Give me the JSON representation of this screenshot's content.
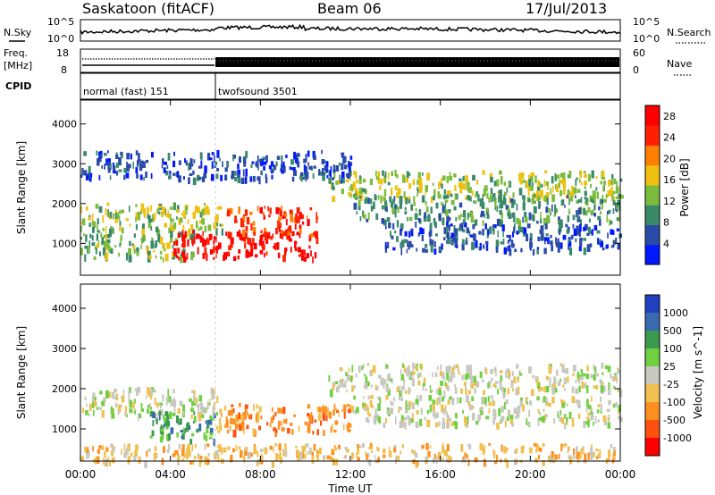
{
  "header": {
    "station": "Saskatoon (fitACF)",
    "beam": "Beam 06",
    "date": "17/Jul/2013"
  },
  "top_panels": {
    "nsky_label": "N.Sky",
    "nsky_ticks": [
      "10^5",
      "10^0"
    ],
    "nsearch_label": "N.Search",
    "nsearch_ticks": [
      "10^5",
      "10^0"
    ],
    "freq_label": "Freq.",
    "freq_unit": "[MHz]",
    "freq_ticks": [
      "18",
      "8"
    ],
    "nave_label": "Nave",
    "nave_ticks": [
      "60",
      "0"
    ],
    "cpid_label": "CPID",
    "cpid_segments": [
      {
        "name": "normal (fast) 151",
        "start_hour": 0,
        "end_hour": 6
      },
      {
        "name": "twofsound 3501",
        "start_hour": 6,
        "end_hour": 24
      }
    ]
  },
  "chart_data": [
    {
      "type": "heatmap",
      "title": "Power",
      "xlabel": "Time UT",
      "ylabel": "Slant Range [km]",
      "xlim": [
        0,
        24
      ],
      "ylim": [
        200,
        4600
      ],
      "y_ticks": [
        "1000",
        "2000",
        "3000",
        "4000"
      ],
      "colorbar_label": "Power [dB]",
      "colorbar_ticks": [
        "4",
        "8",
        "12",
        "16",
        "20",
        "24",
        "28"
      ],
      "colorbar_range": [
        0,
        30
      ],
      "colorscale": [
        "#0018ff",
        "#2a4aa8",
        "#3a8a6a",
        "#7cbc3c",
        "#f0c010",
        "#ff8000",
        "#ff2000",
        "#ff0000"
      ],
      "echo_bands": [
        {
          "start_hour": 0.0,
          "end_hour": 6.3,
          "range_km": 1700,
          "level": 14
        },
        {
          "start_hour": 0.0,
          "end_hour": 5.0,
          "range_km": 1000,
          "level": 12
        },
        {
          "start_hour": 4.0,
          "end_hour": 10.5,
          "range_km": 1000,
          "level": 28
        },
        {
          "start_hour": 6.5,
          "end_hour": 10.5,
          "range_km": 1600,
          "level": 24
        },
        {
          "start_hour": 11.0,
          "end_hour": 24.0,
          "range_km": 2500,
          "level": 14
        },
        {
          "start_hour": 12.0,
          "end_hour": 24.0,
          "range_km": 1900,
          "level": 10
        },
        {
          "start_hour": 13.5,
          "end_hour": 24.0,
          "range_km": 1200,
          "level": 6
        },
        {
          "start_hour": 0.0,
          "end_hour": 12.0,
          "range_km": 3000,
          "level": 5
        }
      ]
    },
    {
      "type": "heatmap",
      "title": "Velocity",
      "xlabel": "Time UT",
      "ylabel": "Slant Range [km]",
      "xlim": [
        0,
        24
      ],
      "ylim": [
        200,
        4600
      ],
      "y_ticks": [
        "1000",
        "2000",
        "3000",
        "4000"
      ],
      "x_ticks": [
        "00:00",
        "04:00",
        "08:00",
        "12:00",
        "16:00",
        "20:00",
        "00:00"
      ],
      "colorbar_label": "Velocity [m s^-1]",
      "colorbar_ticks": [
        "1000",
        "500",
        "100",
        "25",
        "-25",
        "-100",
        "-500",
        "-1000"
      ],
      "colorscale": [
        "#2040c0",
        "#3a6ab0",
        "#3a9a50",
        "#6fd040",
        "#c8c8c0",
        "#f0c050",
        "#ff9020",
        "#ff5010",
        "#ff0000"
      ],
      "echo_bands": [
        {
          "start_hour": 0.0,
          "end_hour": 6.3,
          "range_km": 1700,
          "level": 4
        },
        {
          "start_hour": 3.0,
          "end_hour": 6.0,
          "range_km": 1100,
          "level": 2
        },
        {
          "start_hour": 6.0,
          "end_hour": 12.0,
          "range_km": 1300,
          "level": 6
        },
        {
          "start_hour": 11.0,
          "end_hour": 24.0,
          "range_km": 2300,
          "level": 4
        },
        {
          "start_hour": 12.0,
          "end_hour": 24.0,
          "range_km": 1500,
          "level": 4
        },
        {
          "start_hour": 0.0,
          "end_hour": 24.0,
          "range_km": 300,
          "level": 5
        }
      ]
    }
  ]
}
